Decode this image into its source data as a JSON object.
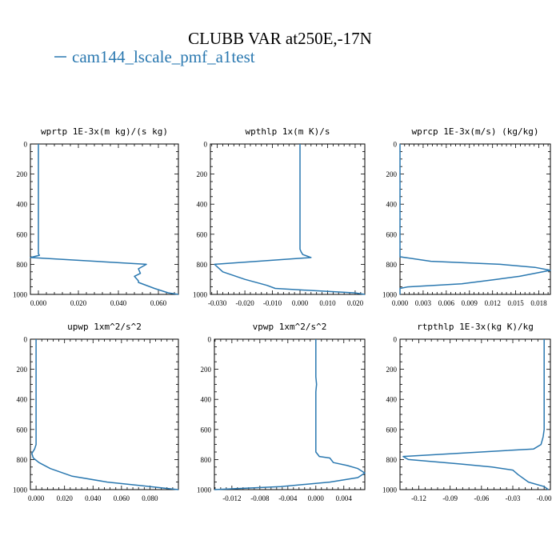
{
  "figure": {
    "title": "CLUBB VAR at250E,-17N",
    "legend_label": "cam144_lscale_pmf_a1test",
    "line_color": "#2a78b0"
  },
  "chart_data": [
    {
      "type": "line",
      "title": "wprtp  1E-3x(m kg)/(s kg)",
      "xlim": [
        -0.004,
        0.07
      ],
      "ylim": [
        1000,
        0
      ],
      "xticks": [
        0.0,
        0.02,
        0.04,
        0.06
      ],
      "xtick_labels": [
        "0.000",
        "0.020",
        "0.040",
        "0.060"
      ],
      "yticks": [
        0,
        200,
        400,
        600,
        800,
        1000
      ],
      "ytick_labels": [
        "0",
        "200",
        "400",
        "600",
        "800",
        "1000"
      ],
      "series": [
        {
          "x": [
            0.0,
            0.0,
            0.0,
            0.0,
            0.0,
            0.0,
            0.0,
            0.0,
            0.0,
            0.0,
            0.0,
            0.0,
            0.0,
            0.0,
            0.0,
            0.0,
            0.0,
            0.0005,
            -0.004,
            0.054,
            0.05,
            0.051,
            0.048,
            0.05,
            0.05,
            0.058,
            0.065,
            0.07
          ],
          "y": [
            0,
            50,
            100,
            150,
            200,
            250,
            300,
            350,
            400,
            450,
            500,
            550,
            600,
            650,
            700,
            720,
            730,
            740,
            755,
            800,
            830,
            860,
            880,
            910,
            920,
            960,
            990,
            1000
          ]
        }
      ]
    },
    {
      "type": "line",
      "title": "wpthlp  1x(m K)/s",
      "xlim": [
        -0.0325,
        0.0235
      ],
      "ylim": [
        1000,
        0
      ],
      "xticks": [
        -0.03,
        -0.02,
        -0.01,
        0.0,
        0.01,
        0.02
      ],
      "xtick_labels": [
        "-0.030",
        "-0.020",
        "-0.010",
        "0.000",
        "0.010",
        "0.020"
      ],
      "yticks": [
        0,
        200,
        400,
        600,
        800,
        1000
      ],
      "ytick_labels": [
        "0",
        "200",
        "400",
        "600",
        "800",
        "1000"
      ],
      "series": [
        {
          "x": [
            0.0,
            0.0,
            0.0,
            0.0,
            0.0,
            0.0,
            0.0,
            0.0,
            0.0,
            0.0,
            0.0,
            0.0,
            0.0,
            0.0,
            0.0,
            0.0005,
            0.001,
            0.004,
            -0.031,
            -0.028,
            -0.02,
            -0.012,
            -0.009,
            0.005,
            0.02,
            0.0235
          ],
          "y": [
            0,
            50,
            100,
            150,
            200,
            250,
            300,
            350,
            400,
            450,
            500,
            550,
            600,
            650,
            700,
            720,
            735,
            755,
            800,
            850,
            900,
            940,
            960,
            975,
            990,
            1000
          ]
        }
      ]
    },
    {
      "type": "line",
      "title": "wprcp  1E-3x(m/s) (kg/kg)",
      "xlim": [
        0.0,
        0.0195
      ],
      "ylim": [
        1000,
        0
      ],
      "xticks": [
        0.0,
        0.003,
        0.006,
        0.009,
        0.012,
        0.015,
        0.018
      ],
      "xtick_labels": [
        "0.000",
        "0.003",
        "0.006",
        "0.009",
        "0.012",
        "0.015",
        "0.018"
      ],
      "yticks": [
        0,
        200,
        400,
        600,
        800,
        1000
      ],
      "ytick_labels": [
        "0",
        "200",
        "400",
        "600",
        "800",
        "1000"
      ],
      "series": [
        {
          "x": [
            0.0,
            0.0,
            0.0,
            0.0,
            0.0,
            0.0,
            0.0,
            0.0,
            0.0,
            0.0,
            0.0,
            0.0,
            0.0,
            0.0,
            0.0,
            0.0,
            0.004,
            0.013,
            0.0175,
            0.0195,
            0.0155,
            0.0125,
            0.008,
            0.001,
            0.0,
            0.0
          ],
          "y": [
            0,
            50,
            100,
            150,
            200,
            250,
            300,
            350,
            400,
            450,
            500,
            550,
            600,
            650,
            700,
            750,
            780,
            800,
            820,
            840,
            880,
            900,
            930,
            950,
            960,
            1000
          ]
        }
      ]
    },
    {
      "type": "line",
      "title": "upwp  1xm^2/s^2",
      "xlim": [
        -0.004,
        0.1
      ],
      "ylim": [
        1000,
        0
      ],
      "xticks": [
        0.0,
        0.02,
        0.04,
        0.06,
        0.08
      ],
      "xtick_labels": [
        "0.000",
        "0.020",
        "0.040",
        "0.060",
        "0.080"
      ],
      "yticks": [
        0,
        200,
        400,
        600,
        800,
        1000
      ],
      "ytick_labels": [
        "0",
        "200",
        "400",
        "600",
        "800",
        "1000"
      ],
      "series": [
        {
          "x": [
            0.0,
            0.0,
            0.0,
            0.0,
            0.0,
            0.0,
            0.0,
            0.0,
            0.0,
            0.0,
            0.0,
            0.0,
            0.0,
            0.0,
            -0.001,
            -0.003,
            -0.002,
            0.002,
            0.01,
            0.025,
            0.05,
            0.075,
            0.095,
            0.1
          ],
          "y": [
            0,
            50,
            100,
            150,
            200,
            250,
            300,
            350,
            400,
            450,
            500,
            550,
            600,
            700,
            730,
            760,
            790,
            820,
            860,
            910,
            950,
            975,
            995,
            1000
          ]
        }
      ]
    },
    {
      "type": "line",
      "title": "vpwp  1xm^2/s^2",
      "xlim": [
        -0.0145,
        0.007
      ],
      "ylim": [
        1000,
        0
      ],
      "xticks": [
        -0.012,
        -0.008,
        -0.004,
        0.0,
        0.004
      ],
      "xtick_labels": [
        "-0.012",
        "-0.008",
        "-0.004",
        "0.000",
        "0.004"
      ],
      "yticks": [
        0,
        200,
        400,
        600,
        800,
        1000
      ],
      "ytick_labels": [
        "0",
        "200",
        "400",
        "600",
        "800",
        "1000"
      ],
      "series": [
        {
          "x": [
            0.0,
            0.0,
            0.0,
            0.0,
            0.0,
            0.0,
            0.0001,
            0.0,
            0.0,
            0.0,
            0.0,
            0.0,
            0.0,
            0.0,
            0.0005,
            0.002,
            0.0025,
            0.0045,
            0.006,
            0.007,
            0.006,
            0.002,
            -0.005,
            -0.0145
          ],
          "y": [
            0,
            50,
            100,
            150,
            200,
            250,
            300,
            350,
            400,
            450,
            500,
            550,
            600,
            750,
            780,
            790,
            820,
            840,
            860,
            890,
            920,
            950,
            980,
            1000
          ]
        }
      ]
    },
    {
      "type": "line",
      "title": "rtpthlp  1E-3x(kg K)/kg",
      "xlim": [
        -0.138,
        0.006
      ],
      "ylim": [
        1000,
        0
      ],
      "xticks": [
        -0.12,
        -0.09,
        -0.06,
        -0.03,
        0.0
      ],
      "xtick_labels": [
        "-0.12",
        "-0.09",
        "-0.06",
        "-0.03",
        "-0.00"
      ],
      "yticks": [
        0,
        200,
        400,
        600,
        800,
        1000
      ],
      "ytick_labels": [
        "0",
        "200",
        "400",
        "600",
        "800",
        "1000"
      ],
      "series": [
        {
          "x": [
            0.0,
            0.0,
            0.0,
            0.0,
            0.0,
            0.0,
            0.0,
            0.0,
            0.0,
            0.0,
            0.0,
            -0.001,
            -0.003,
            -0.01,
            -0.135,
            -0.13,
            -0.08,
            -0.05,
            -0.03,
            -0.025,
            -0.015,
            0.0,
            0.004
          ],
          "y": [
            0,
            50,
            100,
            150,
            200,
            250,
            300,
            350,
            400,
            450,
            600,
            650,
            700,
            730,
            780,
            800,
            830,
            850,
            870,
            900,
            950,
            980,
            1000
          ]
        }
      ]
    }
  ]
}
